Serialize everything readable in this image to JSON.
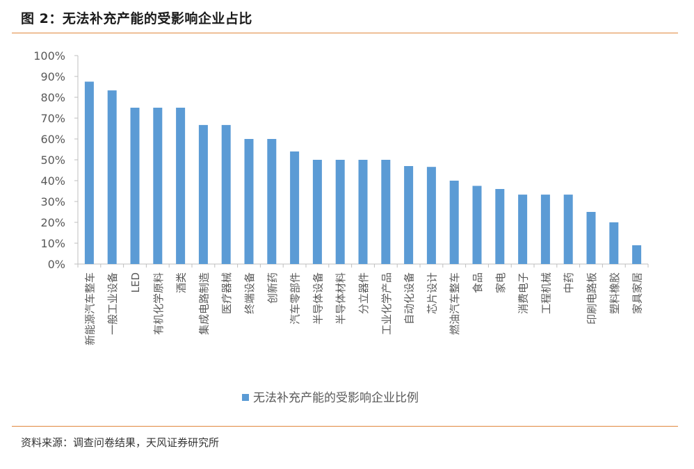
{
  "figure": {
    "title": "图 2：无法补充产能的受影响企业占比",
    "source": "资料来源：调查问卷结果，天风证券研究所"
  },
  "colors": {
    "bar": "#5b9bd5",
    "rule": "#e0873c",
    "axis": "#bfbfbf",
    "text": "#595959"
  },
  "chart_data": {
    "type": "bar",
    "categories": [
      "新能源汽车整车",
      "一般工业设备",
      "LED",
      "有机化学原料",
      "酒类",
      "集成电路制造",
      "医疗器械",
      "终端设备",
      "创新药",
      "汽车零部件",
      "半导体设备",
      "半导体材料",
      "分立器件",
      "工业化学产品",
      "自动化设备",
      "芯片设计",
      "燃油汽车整车",
      "食品",
      "家电",
      "消费电子",
      "工程机械",
      "中药",
      "印刷电路板",
      "塑料橡胶",
      "家具家居"
    ],
    "series": [
      {
        "name": "无法补充产能的受影响企业比例",
        "values": [
          0.875,
          0.833,
          0.75,
          0.75,
          0.75,
          0.667,
          0.667,
          0.6,
          0.6,
          0.54,
          0.5,
          0.5,
          0.5,
          0.5,
          0.47,
          0.466,
          0.4,
          0.375,
          0.36,
          0.333,
          0.333,
          0.333,
          0.25,
          0.2,
          0.09
        ]
      }
    ],
    "ylim": [
      0,
      1
    ],
    "yticks": [
      "0%",
      "10%",
      "20%",
      "30%",
      "40%",
      "50%",
      "60%",
      "70%",
      "80%",
      "90%",
      "100%"
    ],
    "grid": false,
    "legend": "bottom-center"
  }
}
